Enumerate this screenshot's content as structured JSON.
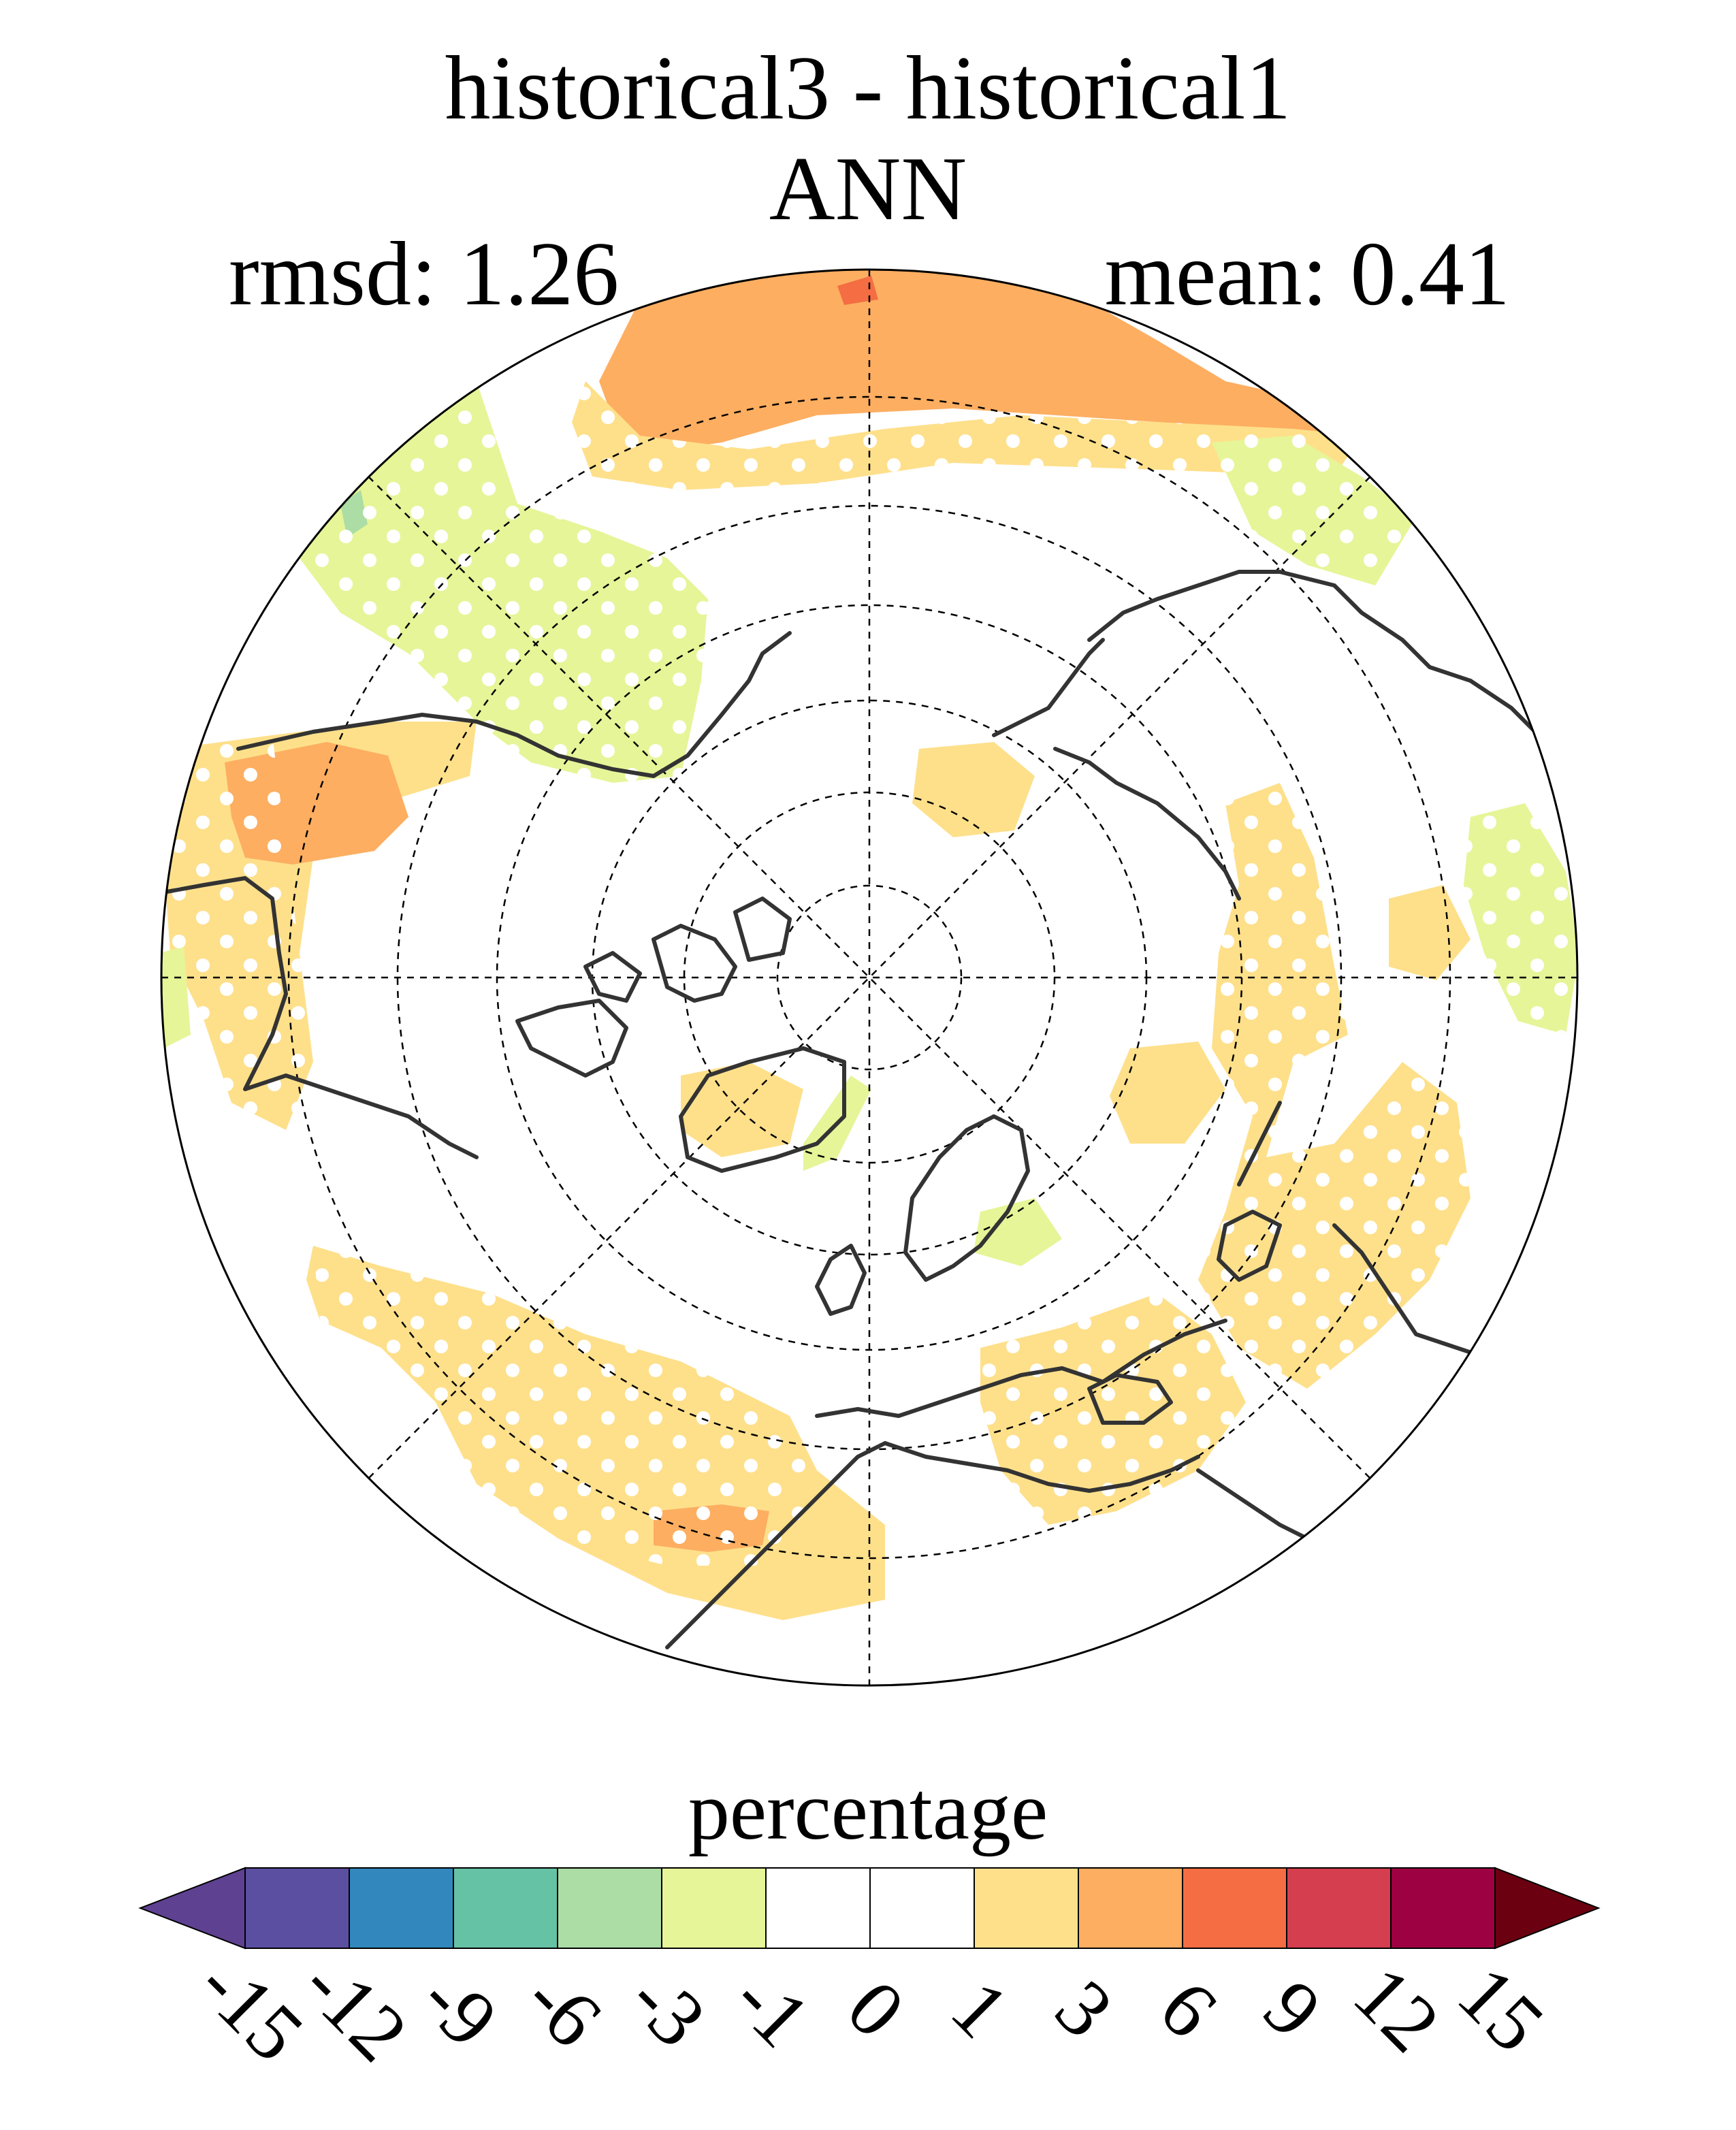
{
  "title": "historical3 - historical1",
  "subtitle": "ANN",
  "stats": {
    "rmsd": "rmsd: 1.26",
    "mean": "mean: 0.41"
  },
  "colorbar": {
    "label": "percentage",
    "ticks": [
      "-15",
      "-12",
      "-9",
      "-6",
      "-3",
      "-1",
      "0",
      "1",
      "3",
      "6",
      "9",
      "12",
      "15"
    ],
    "colors": [
      "#5e4191",
      "#5b4fa2",
      "#3288bd",
      "#66c2a5",
      "#abdda4",
      "#e6f598",
      "#ffffff",
      "#ffffff",
      "#fee08b",
      "#fdae61",
      "#f46d43",
      "#d53e4f",
      "#9e0142",
      "#6b0010"
    ]
  },
  "map": {
    "projection": "north polar stereographic",
    "colors": {
      "pos1": "#fee08b",
      "pos3": "#fdae61",
      "pos6": "#f46d43",
      "neg1": "#e6f598",
      "neg3": "#abdda4",
      "neg6": "#66c2a5",
      "coast": "#333333"
    }
  }
}
